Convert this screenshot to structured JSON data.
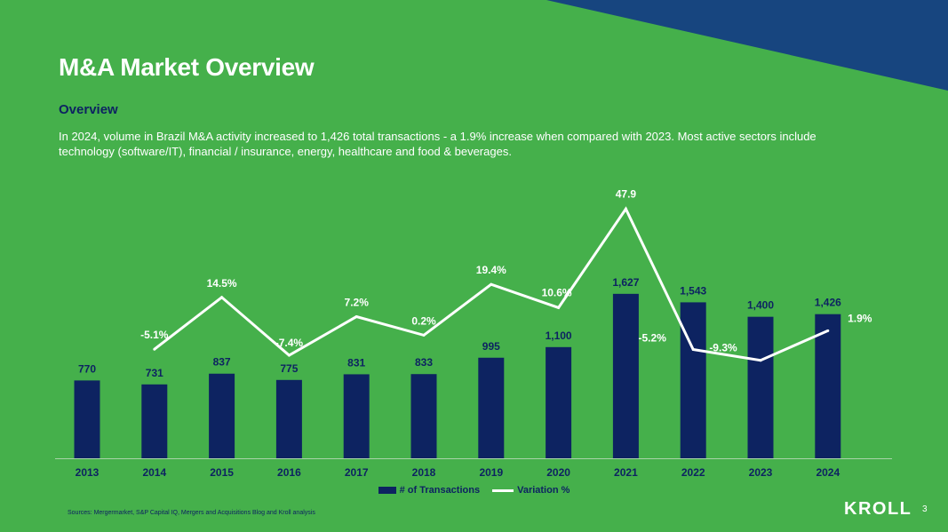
{
  "slide": {
    "title": "M&A Market Overview",
    "subtitle": "Overview",
    "intro": "In 2024, volume in Brazil M&A activity increased to 1,426 total transactions - a 1.9% increase when compared with 2023. Most active sectors include technology (software/IT), financial / insurance, energy, healthcare and food & beverages.",
    "sources": "Sources: Mergermarket, S&P Capital IQ, Mergers and Acquisitions Blog and Kroll analysis",
    "logo": "KROLL",
    "page_number": "3"
  },
  "colors": {
    "background": "#45b04b",
    "corner": "#17457f",
    "bar": "#0d2361",
    "line": "#ffffff",
    "text_dark": "#0d2361"
  },
  "chart_data": {
    "type": "bar",
    "categories": [
      "2013",
      "2014",
      "2015",
      "2016",
      "2017",
      "2018",
      "2019",
      "2020",
      "2021",
      "2022",
      "2023",
      "2024"
    ],
    "series": [
      {
        "name": "# of Transactions",
        "type": "bar",
        "values": [
          770,
          731,
          837,
          775,
          831,
          833,
          995,
          1100,
          1627,
          1543,
          1400,
          1426
        ],
        "labels": [
          "770",
          "731",
          "837",
          "775",
          "831",
          "833",
          "995",
          "1,100",
          "1,627",
          "1,543",
          "1,400",
          "1,426"
        ]
      },
      {
        "name": "Variation %",
        "type": "line",
        "values": [
          null,
          -5.1,
          14.5,
          -7.4,
          7.2,
          0.2,
          19.4,
          10.6,
          47.9,
          -5.2,
          -9.3,
          1.9
        ],
        "labels": [
          "",
          "-5.1%",
          "14.5%",
          "-7.4%",
          "7.2%",
          "0.2%",
          "19.4%",
          "10.6%",
          "47.9",
          "-5.2%",
          "-9.3%",
          "1.9%"
        ]
      }
    ],
    "legend": "bottom-center",
    "grid": false
  }
}
